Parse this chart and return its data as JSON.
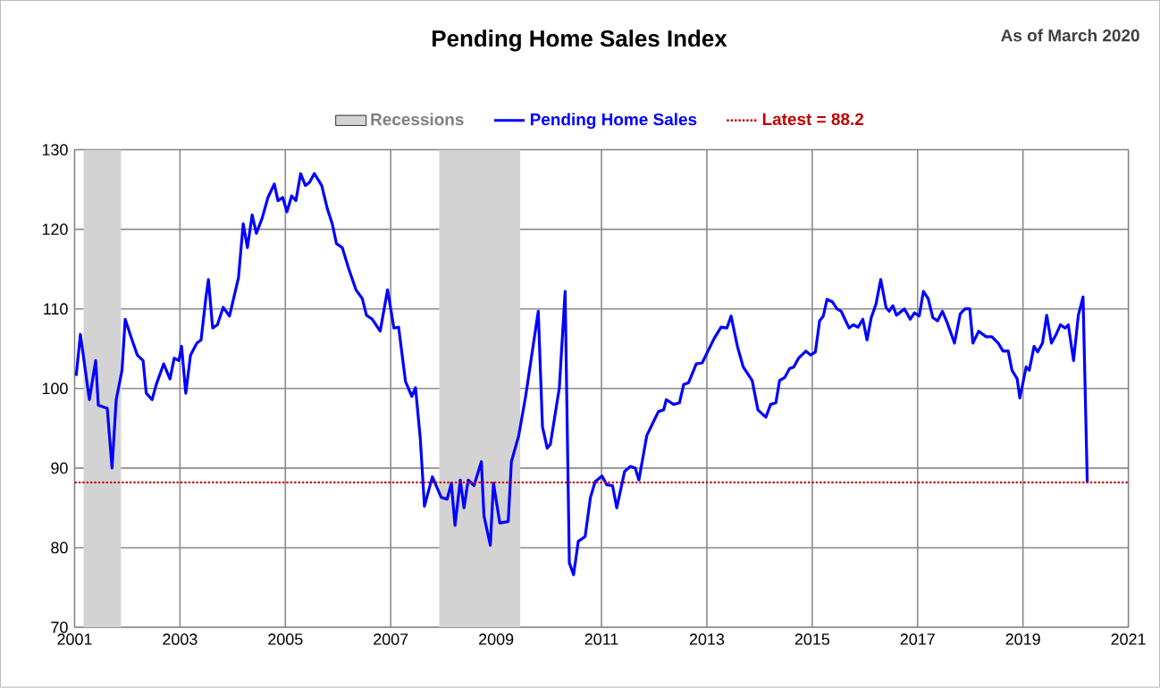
{
  "chart_data": {
    "type": "line",
    "title": "Pending Home Sales Index",
    "subtitle": "As of March 2020",
    "xlim": [
      2001,
      2021
    ],
    "xticks": [
      2001,
      2003,
      2005,
      2007,
      2009,
      2011,
      2013,
      2015,
      2017,
      2019,
      2021
    ],
    "ylim": [
      70,
      130
    ],
    "yticks": [
      70,
      80,
      90,
      100,
      110,
      120,
      130
    ],
    "grid": true,
    "legend": "top",
    "bands": [
      {
        "axis": "x",
        "from": 2001.17,
        "to": 2001.88,
        "label": "Recessions",
        "color": "#d3d3d3"
      },
      {
        "axis": "x",
        "from": 2007.92,
        "to": 2009.46,
        "color": "#d3d3d3"
      }
    ],
    "ref_lines": [
      {
        "axis": "y",
        "value": 88.2,
        "label": "Latest = 88.2",
        "color": "#c00000",
        "line_style": "dotted"
      }
    ],
    "series": [
      {
        "name": "Pending Home Sales",
        "color": "#0000ff",
        "x": [
          2001.03,
          2001.11,
          2001.28,
          2001.4,
          2001.45,
          2001.62,
          2001.71,
          2001.79,
          2001.9,
          2001.96,
          2002.07,
          2002.19,
          2002.3,
          2002.36,
          2002.47,
          2002.55,
          2002.69,
          2002.81,
          2002.89,
          2002.98,
          2003.03,
          2003.11,
          2003.2,
          2003.32,
          2003.4,
          2003.49,
          2003.54,
          2003.62,
          2003.71,
          2003.82,
          2003.94,
          2004.11,
          2004.2,
          2004.28,
          2004.37,
          2004.45,
          2004.56,
          2004.67,
          2004.79,
          2004.86,
          2004.95,
          2005.03,
          2005.12,
          2005.2,
          2005.29,
          2005.38,
          2005.46,
          2005.55,
          2005.69,
          2005.8,
          2005.89,
          2005.97,
          2006.08,
          2006.2,
          2006.34,
          2006.46,
          2006.54,
          2006.65,
          2006.8,
          2006.94,
          2007.06,
          2007.15,
          2007.28,
          2007.4,
          2007.47,
          2007.56,
          2007.64,
          2007.79,
          2007.96,
          2008.07,
          2008.15,
          2008.22,
          2008.32,
          2008.39,
          2008.47,
          2008.58,
          2008.72,
          2008.77,
          2008.89,
          2008.95,
          2009.07,
          2009.23,
          2009.29,
          2009.43,
          2009.56,
          2009.8,
          2009.88,
          2009.97,
          2010.03,
          2010.2,
          2010.31,
          2010.39,
          2010.47,
          2010.56,
          2010.69,
          2010.79,
          2010.88,
          2011.01,
          2011.1,
          2011.21,
          2011.29,
          2011.44,
          2011.55,
          2011.64,
          2011.71,
          2011.86,
          2011.97,
          2012.08,
          2012.18,
          2012.23,
          2012.37,
          2012.48,
          2012.56,
          2012.65,
          2012.8,
          2012.91,
          2013.14,
          2013.27,
          2013.38,
          2013.46,
          2013.58,
          2013.69,
          2013.86,
          2013.97,
          2014.12,
          2014.21,
          2014.31,
          2014.38,
          2014.48,
          2014.57,
          2014.65,
          2014.74,
          2014.88,
          2014.97,
          2015.06,
          2015.14,
          2015.21,
          2015.28,
          2015.38,
          2015.47,
          2015.55,
          2015.62,
          2015.7,
          2015.78,
          2015.87,
          2015.96,
          2016.04,
          2016.12,
          2016.21,
          2016.3,
          2016.4,
          2016.46,
          2016.53,
          2016.6,
          2016.75,
          2016.86,
          2016.94,
          2017.03,
          2017.11,
          2017.2,
          2017.29,
          2017.38,
          2017.47,
          2017.56,
          2017.7,
          2017.81,
          2017.9,
          2017.99,
          2018.05,
          2018.16,
          2018.3,
          2018.41,
          2018.53,
          2018.62,
          2018.72,
          2018.79,
          2018.89,
          2018.94,
          2019.06,
          2019.12,
          2019.21,
          2019.28,
          2019.37,
          2019.45,
          2019.54,
          2019.63,
          2019.71,
          2019.8,
          2019.86,
          2019.96,
          2020.05,
          2020.14,
          2020.22
        ],
        "values": [
          101.6,
          106.8,
          98.6,
          103.5,
          97.9,
          97.5,
          90.0,
          98.6,
          102.3,
          108.7,
          106.5,
          104.2,
          103.5,
          99.4,
          98.6,
          100.5,
          103.1,
          101.2,
          103.8,
          103.5,
          105.3,
          99.4,
          104.2,
          105.7,
          106.1,
          111.3,
          113.7,
          107.6,
          108.0,
          110.2,
          109.1,
          113.9,
          120.7,
          117.7,
          121.8,
          119.5,
          121.4,
          124.0,
          125.7,
          123.6,
          124.0,
          122.2,
          124.2,
          123.6,
          127.0,
          125.5,
          125.9,
          127.0,
          125.5,
          122.5,
          120.7,
          118.2,
          117.7,
          115.1,
          112.4,
          111.3,
          109.2,
          108.7,
          107.2,
          112.4,
          107.6,
          107.7,
          100.9,
          99.0,
          100.1,
          93.8,
          85.2,
          88.9,
          86.3,
          86.1,
          88.1,
          82.8,
          88.5,
          85.0,
          88.5,
          87.8,
          90.8,
          84.0,
          80.3,
          88.1,
          83.1,
          83.3,
          90.8,
          94.1,
          99.0,
          109.7,
          95.2,
          92.5,
          93.0,
          100.1,
          112.2,
          78.1,
          76.6,
          80.8,
          81.4,
          86.3,
          88.3,
          89.0,
          87.9,
          87.8,
          85.0,
          89.6,
          90.2,
          90.0,
          88.5,
          94.1,
          95.6,
          97.1,
          97.3,
          98.6,
          98.0,
          98.2,
          100.5,
          100.7,
          103.1,
          103.2,
          106.3,
          107.7,
          107.6,
          109.1,
          105.3,
          102.7,
          101.0,
          97.3,
          96.4,
          98.0,
          98.2,
          101.0,
          101.4,
          102.5,
          102.7,
          103.8,
          104.7,
          104.2,
          104.6,
          108.5,
          109.1,
          111.2,
          110.9,
          110.0,
          109.7,
          108.7,
          107.6,
          108.0,
          107.7,
          108.7,
          106.1,
          108.9,
          110.6,
          113.7,
          110.2,
          109.7,
          110.4,
          109.2,
          110.0,
          108.7,
          109.5,
          109.1,
          112.2,
          111.3,
          108.9,
          108.5,
          109.7,
          108.3,
          105.7,
          109.4,
          110.0,
          110.0,
          105.7,
          107.2,
          106.5,
          106.5,
          105.7,
          104.7,
          104.7,
          102.3,
          101.2,
          98.8,
          102.7,
          102.3,
          105.3,
          104.6,
          105.7,
          109.2,
          105.7,
          106.8,
          108.0,
          107.6,
          108.0,
          103.5,
          109.2,
          111.5,
          88.2
        ]
      }
    ]
  }
}
